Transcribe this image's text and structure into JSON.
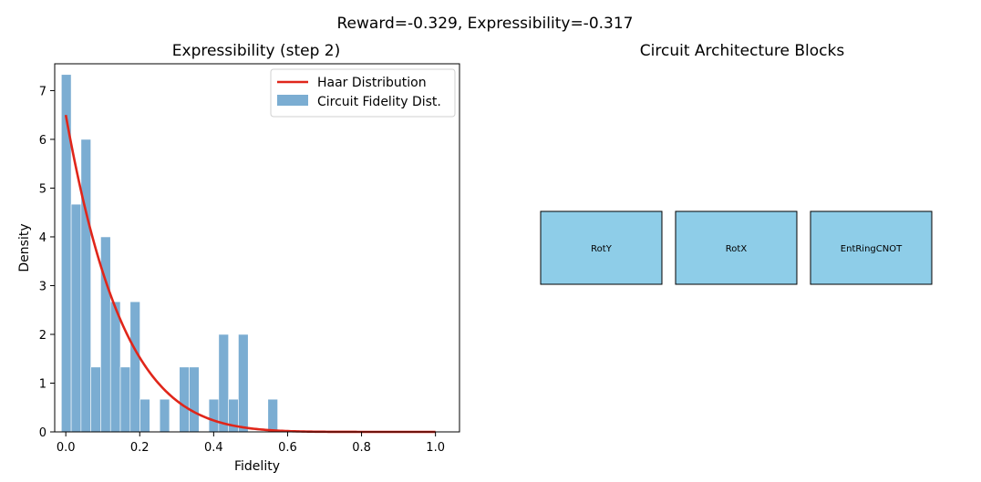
{
  "figure": {
    "suptitle": "Reward=-0.329, Expressibility=-0.317"
  },
  "chart_data": [
    {
      "type": "bar",
      "title": "Expressibility (step 2)",
      "xlabel": "Fidelity",
      "ylabel": "Density",
      "xlim": [
        -0.03,
        1.065
      ],
      "ylim": [
        0,
        7.55
      ],
      "xticks": [
        "0.0",
        "0.2",
        "0.4",
        "0.6",
        "0.8",
        "1.0"
      ],
      "xtick_values": [
        0,
        0.2,
        0.4,
        0.6,
        0.8,
        1.0
      ],
      "yticks": [
        "0",
        "1",
        "2",
        "3",
        "4",
        "5",
        "6",
        "7"
      ],
      "ytick_values": [
        0,
        1,
        2,
        3,
        4,
        5,
        6,
        7
      ],
      "legend_position": "top-right",
      "histogram": {
        "name": "Circuit Fidelity Dist.",
        "color": "#7badd2",
        "bin_width": 0.0266,
        "bins": [
          {
            "x0": -0.012,
            "density": 7.33
          },
          {
            "x0": 0.0146,
            "density": 4.67
          },
          {
            "x0": 0.0412,
            "density": 6.0
          },
          {
            "x0": 0.0678,
            "density": 1.33
          },
          {
            "x0": 0.0944,
            "density": 4.0
          },
          {
            "x0": 0.121,
            "density": 2.67
          },
          {
            "x0": 0.1476,
            "density": 1.33
          },
          {
            "x0": 0.1742,
            "density": 2.67
          },
          {
            "x0": 0.2008,
            "density": 0.67
          },
          {
            "x0": 0.254,
            "density": 0.67
          },
          {
            "x0": 0.3072,
            "density": 1.33
          },
          {
            "x0": 0.3338,
            "density": 1.33
          },
          {
            "x0": 0.387,
            "density": 0.67
          },
          {
            "x0": 0.4136,
            "density": 2.0
          },
          {
            "x0": 0.4402,
            "density": 0.67
          },
          {
            "x0": 0.4668,
            "density": 2.0
          },
          {
            "x0": 0.5466,
            "density": 0.67
          }
        ]
      },
      "haar_curve": {
        "name": "Haar Distribution",
        "color": "#e0261a",
        "formula": "6.5*(1-x)^6.5",
        "coefficient": 6.5,
        "exponent": 6.5,
        "x_range": [
          0,
          1.0
        ]
      }
    }
  ],
  "blocks_panel": {
    "title": "Circuit Architecture Blocks",
    "fill": "#8ecde8",
    "blocks": [
      "RotY",
      "RotX",
      "EntRingCNOT"
    ]
  }
}
